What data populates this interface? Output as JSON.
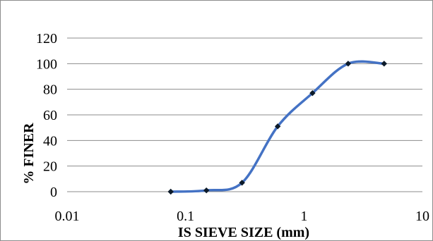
{
  "chart_data": {
    "type": "line",
    "smooth": true,
    "title": "",
    "xlabel": "IS SIEVE SIZE (mm)",
    "ylabel": "% FINER",
    "x_scale": "log",
    "xlim": [
      0.01,
      10
    ],
    "ylim": [
      0,
      120
    ],
    "x_ticks": [
      0.01,
      0.1,
      1,
      10
    ],
    "x_tick_labels": [
      "0.01",
      "0.1",
      "1",
      "10"
    ],
    "y_ticks": [
      0,
      20,
      40,
      60,
      80,
      100,
      120
    ],
    "y_tick_labels": [
      "0",
      "20",
      "40",
      "60",
      "80",
      "100",
      "120"
    ],
    "grid": "horizontal",
    "legend": "none",
    "series": [
      {
        "x": [
          0.075,
          0.15,
          0.3,
          0.6,
          1.18,
          2.36,
          4.75
        ],
        "y": [
          0,
          1,
          7,
          51,
          77,
          100,
          100
        ],
        "color": "#4472C4",
        "marker_color": "#0d1b2a"
      }
    ]
  }
}
